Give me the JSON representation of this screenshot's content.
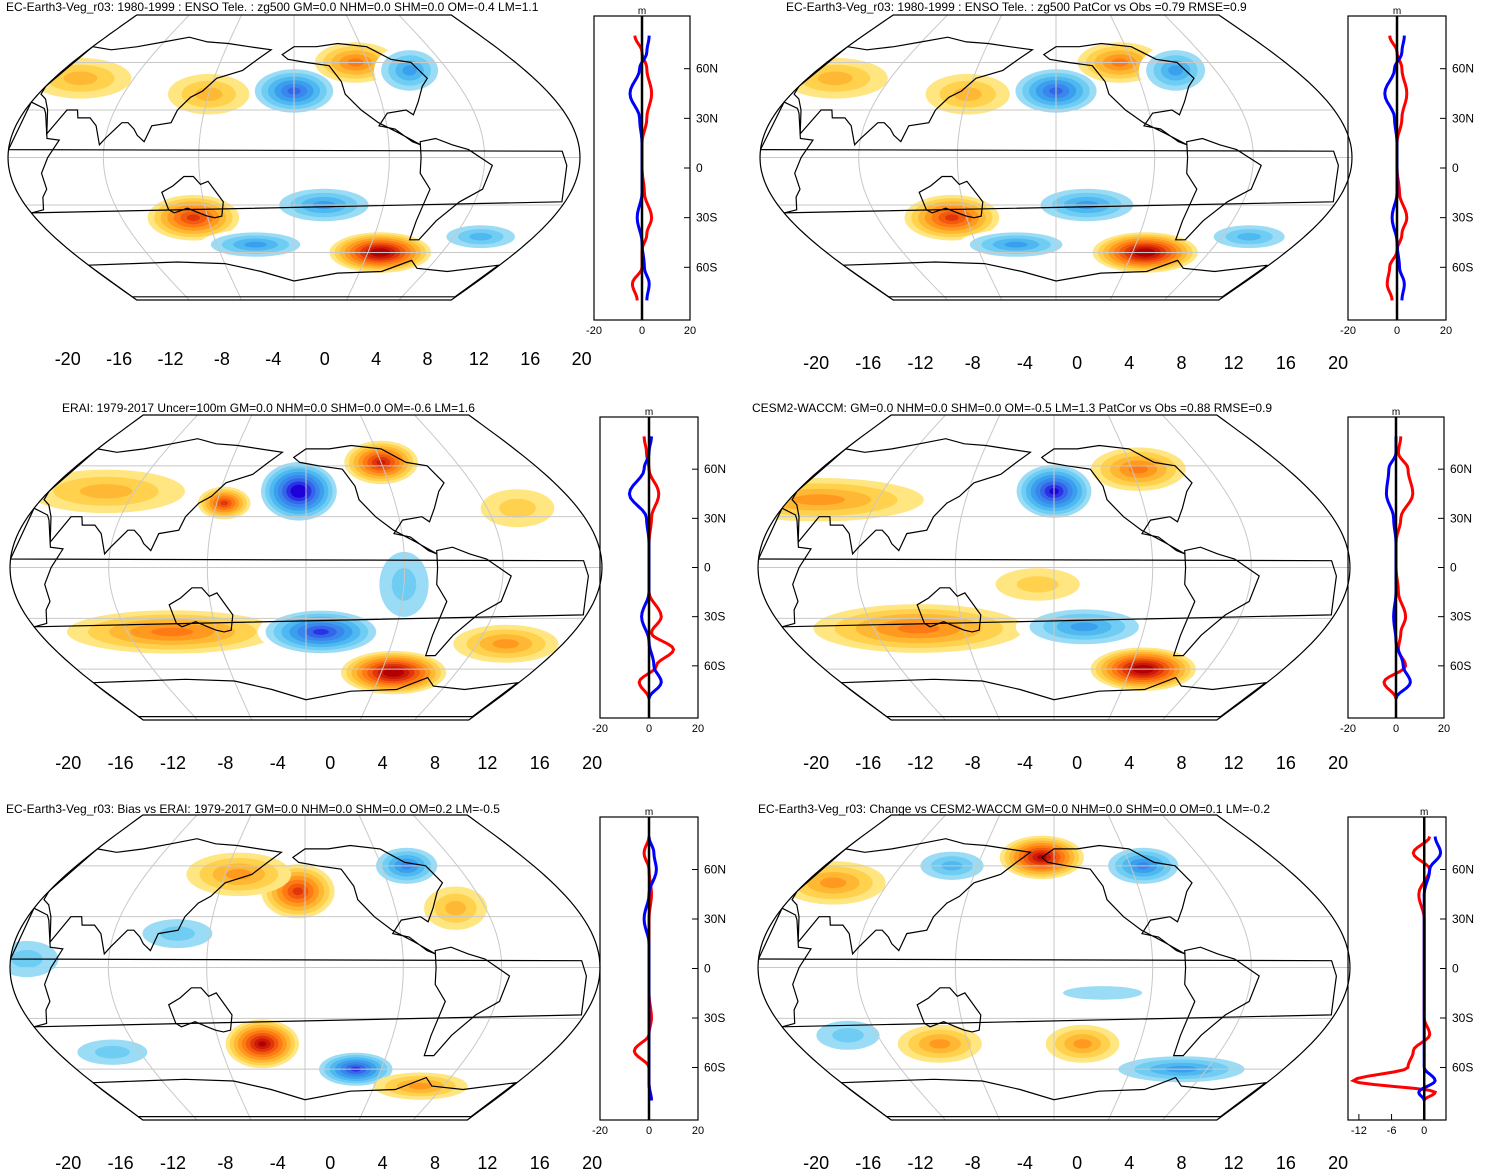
{
  "colorbar": {
    "labels": [
      "-20",
      "-16",
      "-12",
      "-8",
      "-4",
      "0",
      "4",
      "8",
      "12",
      "16",
      "20"
    ],
    "colors": [
      "#1f00d9",
      "#2a32e6",
      "#3366e8",
      "#3a86ec",
      "#3aa0ee",
      "#4fb8f0",
      "#6fcdf3",
      "#9adcf5",
      "#ffffff",
      "#ffffff",
      "#fff7a8",
      "#ffe680",
      "#ffd14d",
      "#ffb833",
      "#ff9a1f",
      "#ff7a14",
      "#f25a0d",
      "#e0360a",
      "#cc1a0a",
      "#b30000"
    ]
  },
  "profile_axis": {
    "lat_labels": [
      "60N",
      "30N",
      "0",
      "30S",
      "60S"
    ],
    "unit": "m"
  },
  "panels": [
    {
      "title": "EC-Earth3-Veg_r03: 1980-1999 : ENSO Tele. : zg500 GM=0.0 NHM=0.0 SHM=0.0 OM=-0.4 LM=1.1",
      "xticks": [
        "-20",
        "0",
        "20"
      ],
      "blobs": [
        {
          "lon": -160,
          "lat": 42,
          "v": -14,
          "sx": 18,
          "sy": 10
        },
        {
          "lon": -110,
          "lat": 60,
          "v": 10,
          "sx": 16,
          "sy": 8
        },
        {
          "lon": -70,
          "lat": 55,
          "v": -10,
          "sx": 14,
          "sy": 10
        },
        {
          "lon": 140,
          "lat": 40,
          "v": 6,
          "sx": 16,
          "sy": 8
        },
        {
          "lon": 40,
          "lat": 50,
          "v": 6,
          "sx": 20,
          "sy": 8
        },
        {
          "lon": 130,
          "lat": -38,
          "v": 14,
          "sx": 18,
          "sy": 9
        },
        {
          "lon": -140,
          "lat": -30,
          "v": -10,
          "sx": 22,
          "sy": 8
        },
        {
          "lon": -90,
          "lat": -60,
          "v": 20,
          "sx": 20,
          "sy": 8
        },
        {
          "lon": 170,
          "lat": -55,
          "v": -10,
          "sx": 22,
          "sy": 6
        },
        {
          "lon": -20,
          "lat": -50,
          "v": -8,
          "sx": 18,
          "sy": 6
        }
      ],
      "red_profile": [
        [
          80,
          -3
        ],
        [
          70,
          0
        ],
        [
          60,
          2
        ],
        [
          45,
          4
        ],
        [
          30,
          2
        ],
        [
          15,
          0
        ],
        [
          0,
          0
        ],
        [
          -15,
          1
        ],
        [
          -30,
          4
        ],
        [
          -40,
          2
        ],
        [
          -50,
          0
        ],
        [
          -60,
          0
        ],
        [
          -70,
          -4
        ],
        [
          -80,
          -2
        ]
      ],
      "blue_profile": [
        [
          80,
          3
        ],
        [
          70,
          2
        ],
        [
          60,
          -1
        ],
        [
          45,
          -5
        ],
        [
          30,
          -1
        ],
        [
          15,
          0
        ],
        [
          0,
          0
        ],
        [
          -15,
          0
        ],
        [
          -30,
          -2
        ],
        [
          -45,
          0
        ],
        [
          -60,
          1
        ],
        [
          -70,
          3
        ],
        [
          -80,
          2
        ]
      ]
    },
    {
      "title": "EC-Earth3-Veg_r03: 1980-1999 : ENSO Tele. : zg500 PatCor vs Obs =0.79 RMSE=0.9",
      "xticks": [
        "-20",
        "0",
        "20"
      ],
      "blobs": [
        {
          "lon": -160,
          "lat": 42,
          "v": -14,
          "sx": 18,
          "sy": 10
        },
        {
          "lon": -110,
          "lat": 60,
          "v": 10,
          "sx": 16,
          "sy": 8
        },
        {
          "lon": -70,
          "lat": 55,
          "v": -10,
          "sx": 14,
          "sy": 10
        },
        {
          "lon": 140,
          "lat": 40,
          "v": 6,
          "sx": 16,
          "sy": 8
        },
        {
          "lon": 40,
          "lat": 50,
          "v": 6,
          "sx": 20,
          "sy": 8
        },
        {
          "lon": 130,
          "lat": -38,
          "v": 14,
          "sx": 18,
          "sy": 9
        },
        {
          "lon": -140,
          "lat": -30,
          "v": -10,
          "sx": 22,
          "sy": 8
        },
        {
          "lon": -90,
          "lat": -60,
          "v": 20,
          "sx": 20,
          "sy": 8
        },
        {
          "lon": 170,
          "lat": -55,
          "v": -10,
          "sx": 22,
          "sy": 6
        },
        {
          "lon": -20,
          "lat": -50,
          "v": -8,
          "sx": 18,
          "sy": 6
        }
      ],
      "red_profile": [
        [
          80,
          -3
        ],
        [
          70,
          0
        ],
        [
          60,
          2
        ],
        [
          45,
          4
        ],
        [
          30,
          2
        ],
        [
          15,
          0
        ],
        [
          0,
          0
        ],
        [
          -15,
          1
        ],
        [
          -30,
          4
        ],
        [
          -40,
          2
        ],
        [
          -50,
          0
        ],
        [
          -60,
          -3
        ],
        [
          -70,
          -4
        ],
        [
          -80,
          -2
        ]
      ],
      "blue_profile": [
        [
          80,
          3
        ],
        [
          70,
          2
        ],
        [
          60,
          -1
        ],
        [
          45,
          -5
        ],
        [
          30,
          -1
        ],
        [
          15,
          0
        ],
        [
          0,
          0
        ],
        [
          -15,
          0
        ],
        [
          -30,
          -2
        ],
        [
          -45,
          0
        ],
        [
          -60,
          1
        ],
        [
          -70,
          3
        ],
        [
          -80,
          2
        ]
      ]
    },
    {
      "title": "ERAI: 1979-2017 Uncer=100m GM=0.0 NHM=0.0 SHM=0.0 OM=-0.6 LM=1.6",
      "xticks": [
        "-20",
        "0",
        "20"
      ],
      "blobs": [
        {
          "lon": -165,
          "lat": 45,
          "v": -20,
          "sx": 16,
          "sy": 12
        },
        {
          "lon": -100,
          "lat": 62,
          "v": 16,
          "sx": 14,
          "sy": 8
        },
        {
          "lon": 145,
          "lat": 38,
          "v": 14,
          "sx": 10,
          "sy": 6
        },
        {
          "lon": 60,
          "lat": 45,
          "v": 6,
          "sx": 30,
          "sy": 8
        },
        {
          "lon": -20,
          "lat": 35,
          "v": 5,
          "sx": 14,
          "sy": 7
        },
        {
          "lon": 110,
          "lat": -38,
          "v": 10,
          "sx": 40,
          "sy": 8
        },
        {
          "lon": -150,
          "lat": -38,
          "v": -16,
          "sx": 24,
          "sy": 9
        },
        {
          "lon": -90,
          "lat": -62,
          "v": 20,
          "sx": 20,
          "sy": 8
        },
        {
          "lon": -100,
          "lat": -10,
          "v": -6,
          "sx": 14,
          "sy": 18
        },
        {
          "lon": -20,
          "lat": -45,
          "v": 8,
          "sx": 20,
          "sy": 7
        }
      ],
      "red_profile": [
        [
          80,
          -2
        ],
        [
          70,
          -1
        ],
        [
          60,
          0
        ],
        [
          45,
          4
        ],
        [
          30,
          1
        ],
        [
          15,
          0
        ],
        [
          0,
          0
        ],
        [
          -15,
          0
        ],
        [
          -30,
          5
        ],
        [
          -40,
          1
        ],
        [
          -50,
          10
        ],
        [
          -60,
          3
        ],
        [
          -70,
          -4
        ],
        [
          -80,
          0
        ]
      ],
      "blue_profile": [
        [
          80,
          1
        ],
        [
          70,
          0
        ],
        [
          60,
          -2
        ],
        [
          45,
          -8
        ],
        [
          30,
          -1
        ],
        [
          15,
          0
        ],
        [
          0,
          0
        ],
        [
          -15,
          0
        ],
        [
          -30,
          -3
        ],
        [
          -45,
          0
        ],
        [
          -60,
          2
        ],
        [
          -70,
          5
        ],
        [
          -80,
          0
        ]
      ]
    },
    {
      "title": "CESM2-WACCM: GM=0.0 NHM=0.0 SHM=0.0 OM=-0.5 LM=1.3 PatCor vs Obs =0.88 RMSE=0.9",
      "xticks": [
        "-20",
        "0",
        "20"
      ],
      "blobs": [
        {
          "lon": -160,
          "lat": 45,
          "v": -18,
          "sx": 16,
          "sy": 11
        },
        {
          "lon": -95,
          "lat": 58,
          "v": 10,
          "sx": 18,
          "sy": 8
        },
        {
          "lon": 40,
          "lat": 40,
          "v": 8,
          "sx": 40,
          "sy": 8
        },
        {
          "lon": 110,
          "lat": -36,
          "v": 10,
          "sx": 40,
          "sy": 9
        },
        {
          "lon": -140,
          "lat": -35,
          "v": -10,
          "sx": 26,
          "sy": 8
        },
        {
          "lon": -90,
          "lat": -60,
          "v": 20,
          "sx": 20,
          "sy": 8
        },
        {
          "lon": -170,
          "lat": -10,
          "v": 5,
          "sx": 16,
          "sy": 6
        }
      ],
      "red_profile": [
        [
          80,
          2
        ],
        [
          70,
          1
        ],
        [
          60,
          5
        ],
        [
          45,
          7
        ],
        [
          30,
          2
        ],
        [
          15,
          0
        ],
        [
          0,
          0
        ],
        [
          -15,
          1
        ],
        [
          -30,
          4
        ],
        [
          -40,
          2
        ],
        [
          -50,
          1
        ],
        [
          -60,
          4
        ],
        [
          -70,
          -5
        ],
        [
          -80,
          0
        ]
      ],
      "blue_profile": [
        [
          80,
          0
        ],
        [
          70,
          0
        ],
        [
          60,
          -3
        ],
        [
          45,
          -4
        ],
        [
          30,
          -1
        ],
        [
          15,
          0
        ],
        [
          0,
          0
        ],
        [
          -15,
          0
        ],
        [
          -30,
          -1
        ],
        [
          -45,
          0
        ],
        [
          -60,
          3
        ],
        [
          -70,
          6
        ],
        [
          -80,
          0
        ]
      ]
    },
    {
      "title": "EC-Earth3-Veg_r03: Bias vs ERAI: 1979-2017 GM=0.0 NHM=0.0 SHM=0.0 OM=0.2 LM=-0.5",
      "xticks": [
        "-20",
        "0",
        "20"
      ],
      "blobs": [
        {
          "lon": -165,
          "lat": 45,
          "v": 14,
          "sx": 14,
          "sy": 10
        },
        {
          "lon": -80,
          "lat": 60,
          "v": -12,
          "sx": 14,
          "sy": 8
        },
        {
          "lon": 150,
          "lat": 55,
          "v": 8,
          "sx": 20,
          "sy": 8
        },
        {
          "lon": 120,
          "lat": 20,
          "v": -6,
          "sx": 20,
          "sy": 8
        },
        {
          "lon": 30,
          "lat": 5,
          "v": -6,
          "sx": 18,
          "sy": 10
        },
        {
          "lon": 170,
          "lat": -45,
          "v": 18,
          "sx": 14,
          "sy": 9
        },
        {
          "lon": -120,
          "lat": -60,
          "v": -16,
          "sx": 16,
          "sy": 7
        },
        {
          "lon": -60,
          "lat": -70,
          "v": 8,
          "sx": 18,
          "sy": 5
        },
        {
          "lon": -60,
          "lat": 35,
          "v": 6,
          "sx": 12,
          "sy": 8
        },
        {
          "lon": 60,
          "lat": -50,
          "v": -6,
          "sx": 20,
          "sy": 7
        }
      ],
      "red_profile": [
        [
          80,
          0
        ],
        [
          70,
          -2
        ],
        [
          60,
          0
        ],
        [
          45,
          1
        ],
        [
          30,
          0
        ],
        [
          15,
          0
        ],
        [
          0,
          0
        ],
        [
          -15,
          0
        ],
        [
          -30,
          1
        ],
        [
          -40,
          0
        ],
        [
          -50,
          -6
        ],
        [
          -60,
          0
        ],
        [
          -70,
          0
        ],
        [
          -80,
          1
        ]
      ],
      "blue_profile": [
        [
          80,
          0
        ],
        [
          70,
          2
        ],
        [
          60,
          3
        ],
        [
          45,
          0
        ],
        [
          30,
          -2
        ],
        [
          15,
          0
        ],
        [
          0,
          0
        ],
        [
          -15,
          0
        ],
        [
          -30,
          0
        ],
        [
          -45,
          0
        ],
        [
          -60,
          0
        ],
        [
          -70,
          0
        ],
        [
          -80,
          1
        ]
      ]
    },
    {
      "title": "EC-Earth3-Veg_r03: Change vs CESM2-WACCM GM=0.0 NHM=0.0 SHM=0.0 OM=0.1 LM=-0.2",
      "xticks": [
        "-12",
        "-6",
        "0"
      ],
      "blobs": [
        {
          "lon": -170,
          "lat": 65,
          "v": 18,
          "sx": 16,
          "sy": 8
        },
        {
          "lon": -90,
          "lat": 60,
          "v": -12,
          "sx": 16,
          "sy": 8
        },
        {
          "lon": 120,
          "lat": 60,
          "v": -8,
          "sx": 16,
          "sy": 7
        },
        {
          "lon": 40,
          "lat": 50,
          "v": 8,
          "sx": 20,
          "sy": 8
        },
        {
          "lon": 120,
          "lat": -45,
          "v": 8,
          "sx": 16,
          "sy": 7
        },
        {
          "lon": -140,
          "lat": -45,
          "v": 8,
          "sx": 14,
          "sy": 7
        },
        {
          "lon": -60,
          "lat": -60,
          "v": -10,
          "sx": 30,
          "sy": 6
        },
        {
          "lon": 60,
          "lat": -40,
          "v": -6,
          "sx": 18,
          "sy": 8
        },
        {
          "lon": -130,
          "lat": -15,
          "v": -5,
          "sx": 30,
          "sy": 5
        }
      ],
      "red_profile": [
        [
          80,
          1
        ],
        [
          70,
          -2
        ],
        [
          60,
          1
        ],
        [
          45,
          -1
        ],
        [
          30,
          0
        ],
        [
          15,
          0
        ],
        [
          0,
          0
        ],
        [
          -15,
          0
        ],
        [
          -30,
          0
        ],
        [
          -40,
          1
        ],
        [
          -50,
          -2
        ],
        [
          -60,
          -3
        ],
        [
          -68,
          -13
        ],
        [
          -75,
          2
        ],
        [
          -80,
          0
        ]
      ],
      "blue_profile": [
        [
          80,
          2
        ],
        [
          70,
          3
        ],
        [
          60,
          1
        ],
        [
          45,
          0
        ],
        [
          30,
          0
        ],
        [
          15,
          0
        ],
        [
          0,
          0
        ],
        [
          -15,
          0
        ],
        [
          -30,
          0
        ],
        [
          -45,
          0
        ],
        [
          -60,
          0
        ],
        [
          -68,
          2
        ],
        [
          -75,
          -1
        ],
        [
          -80,
          0
        ]
      ]
    }
  ]
}
